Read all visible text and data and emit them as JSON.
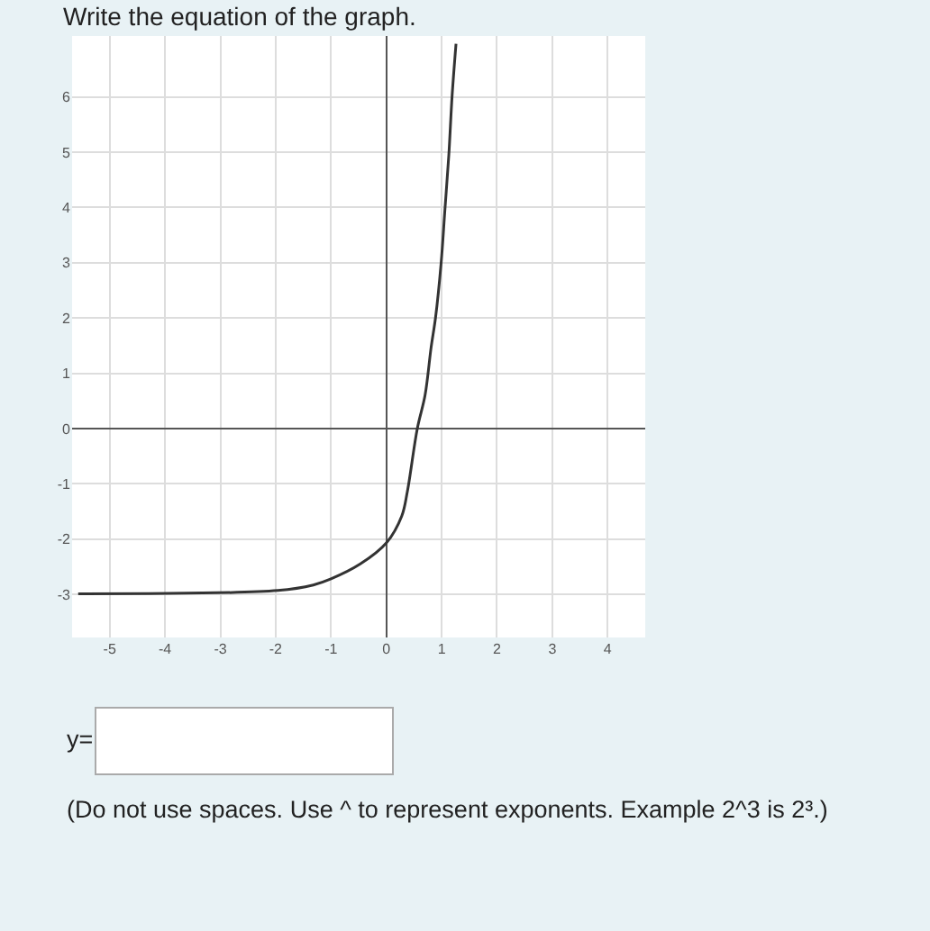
{
  "chart_data": {
    "type": "line",
    "title": "Write the equation of the graph.",
    "x": [
      -5.57,
      -1.96,
      -1.32,
      -1.0,
      -0.47,
      0.0,
      0.28,
      0.38,
      0.56,
      0.7,
      0.81,
      0.89,
      0.99,
      1.06,
      1.13,
      1.19,
      1.26
    ],
    "series": [
      {
        "color": "#333333",
        "values": [
          -2.99,
          -2.93,
          -2.83,
          -2.72,
          -2.45,
          -2.07,
          -1.58,
          -1.14,
          0.0,
          0.6,
          1.47,
          2.01,
          2.99,
          3.97,
          4.95,
          6.03,
          6.96
        ]
      }
    ],
    "xlim": [
      -5.68,
      4.68
    ],
    "ylim": [
      -3.78,
      7.1
    ],
    "xticks": [
      -5,
      -4,
      -3,
      -2,
      -1,
      0,
      1,
      2,
      3,
      4
    ],
    "yticks": [
      -3,
      -2,
      -1,
      0,
      1,
      2,
      3,
      4,
      5,
      6
    ],
    "grid": true,
    "marker": "none",
    "line_style": "solid",
    "annotations": [
      "y=",
      "(Do not use spaces. Use ^ to represent exponents. Example 2^3 is 2³.)"
    ]
  }
}
